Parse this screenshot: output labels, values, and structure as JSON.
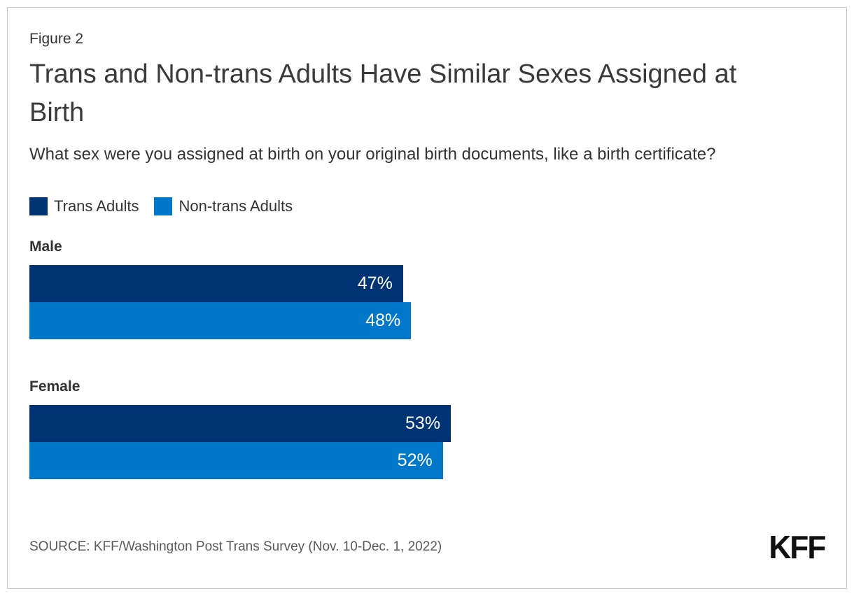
{
  "figure_label": "Figure 2",
  "title": "Trans and Non-trans Adults Have Similar Sexes Assigned at Birth",
  "subtitle": "What sex were you assigned at birth on your original birth documents, like a birth certificate?",
  "legend": [
    {
      "label": "Trans Adults",
      "color": "#003373"
    },
    {
      "label": "Non-trans Adults",
      "color": "#0077C8"
    }
  ],
  "source": "SOURCE: KFF/Washington Post Trans Survey (Nov. 10-Dec. 1, 2022)",
  "logo_text": "KFF",
  "colors": {
    "trans_adults": "#003373",
    "non_trans_adults": "#0077C8",
    "frame_border": "#c9c9c9",
    "text": "#333333",
    "source_text": "#595959",
    "bar_value_text": "#ffffff"
  },
  "chart_data": {
    "type": "bar",
    "orientation": "horizontal",
    "categories": [
      "Male",
      "Female"
    ],
    "series": [
      {
        "name": "Trans Adults",
        "color": "#003373",
        "values": [
          47,
          53
        ]
      },
      {
        "name": "Non-trans Adults",
        "color": "#0077C8",
        "values": [
          48,
          52
        ]
      }
    ],
    "value_suffix": "%",
    "xlim": [
      0,
      100
    ],
    "grid": false,
    "legend_position": "top-left",
    "value_labels": "inside-end"
  }
}
